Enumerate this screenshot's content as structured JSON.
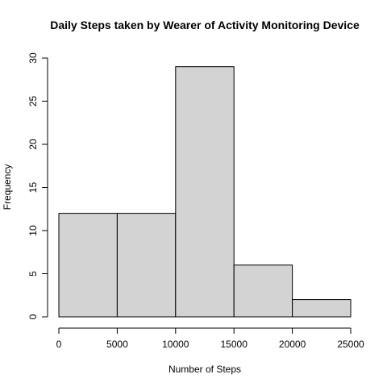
{
  "chart_data": {
    "type": "bar",
    "title": "Daily Steps taken by Wearer of Activity Monitoring Device",
    "xlabel": "Number of Steps",
    "ylabel": "Frequency",
    "bins": [
      {
        "from": 0,
        "to": 5000,
        "count": 12
      },
      {
        "from": 5000,
        "to": 10000,
        "count": 12
      },
      {
        "from": 10000,
        "to": 15000,
        "count": 29
      },
      {
        "from": 15000,
        "to": 20000,
        "count": 6
      },
      {
        "from": 20000,
        "to": 25000,
        "count": 2
      }
    ],
    "xlim": [
      0,
      25000
    ],
    "ylim": [
      0,
      30
    ],
    "xticks": [
      0,
      5000,
      10000,
      15000,
      20000,
      25000
    ],
    "yticks": [
      0,
      5,
      10,
      15,
      20,
      25,
      30
    ],
    "xtick_labels": [
      "0",
      "5000",
      "10000",
      "15000",
      "20000",
      "25000"
    ],
    "ytick_labels": [
      "0",
      "5",
      "10",
      "15",
      "20",
      "25",
      "30"
    ],
    "grid": false,
    "legend": false,
    "bar_fill": "#d3d3d3",
    "bar_stroke": "#000000"
  }
}
